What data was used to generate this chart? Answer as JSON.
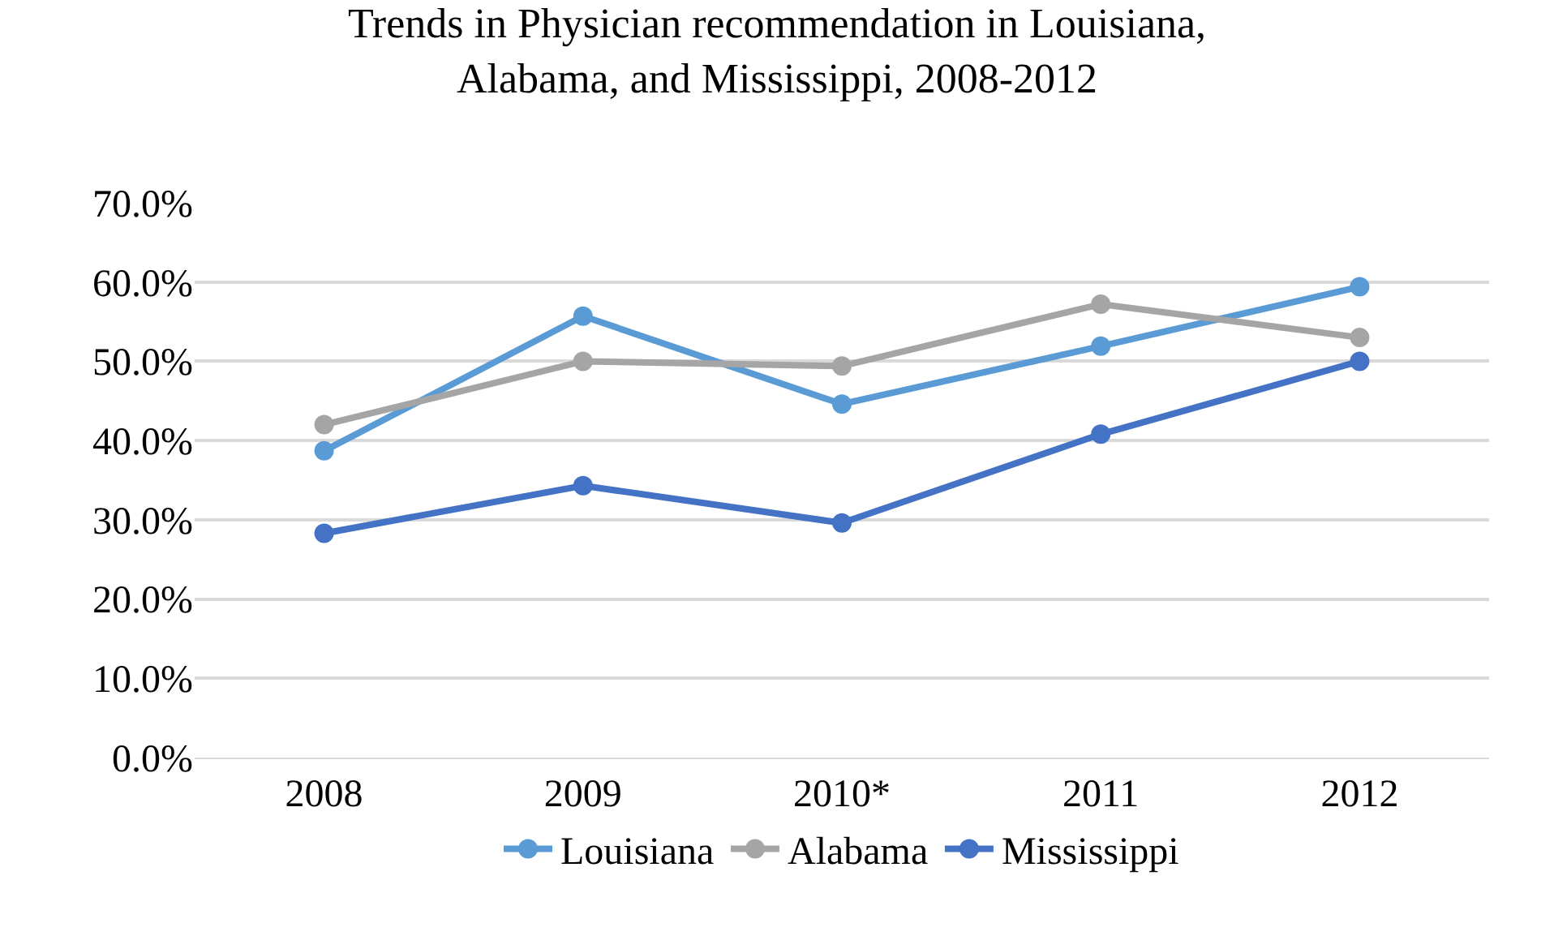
{
  "chart_data": {
    "type": "line",
    "title": "Trends in Physician recommendation in Louisiana,\nAlabama, and Mississippi, 2008-2012",
    "categories": [
      "2008",
      "2009",
      "2010*",
      "2011",
      "2012"
    ],
    "series": [
      {
        "name": "Louisiana",
        "color": "#5b9bd5",
        "values": [
          38.7,
          55.7,
          44.6,
          51.9,
          59.4
        ]
      },
      {
        "name": "Alabama",
        "color": "#a5a5a5",
        "values": [
          42.0,
          50.0,
          49.4,
          57.2,
          53.0
        ]
      },
      {
        "name": "Mississippi",
        "color": "#4472c4",
        "values": [
          28.3,
          34.3,
          29.6,
          40.8,
          50.0
        ]
      }
    ],
    "ylim": [
      0,
      70
    ],
    "yticks": [
      {
        "value": 0,
        "label": "0.0%"
      },
      {
        "value": 10,
        "label": "10.0%"
      },
      {
        "value": 20,
        "label": "20.0%"
      },
      {
        "value": 30,
        "label": "30.0%"
      },
      {
        "value": 40,
        "label": "40.0%"
      },
      {
        "value": 50,
        "label": "50.0%"
      },
      {
        "value": 60,
        "label": "60.0%"
      },
      {
        "value": 70,
        "label": "70.0%"
      }
    ],
    "grid": "y",
    "legend": "bottom",
    "marker": "circle",
    "line_style": "solid"
  }
}
